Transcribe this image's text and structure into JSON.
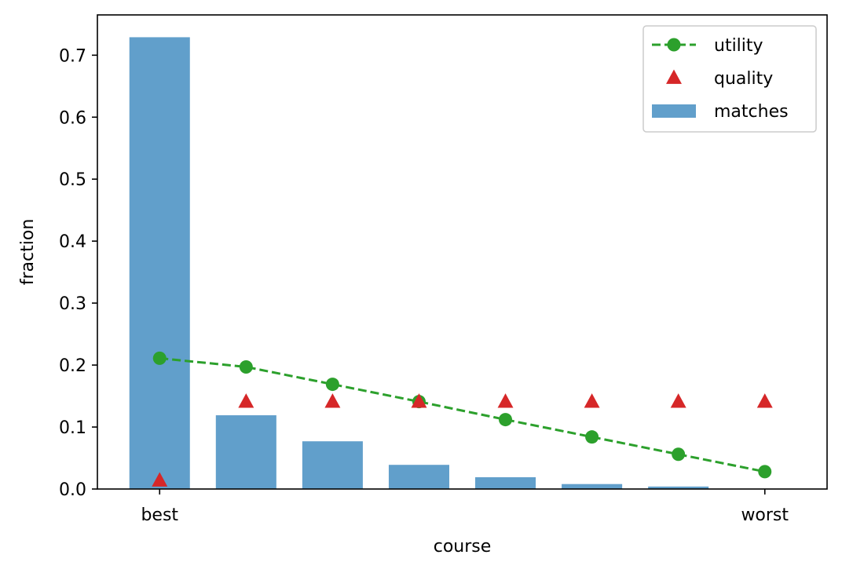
{
  "chart_data": {
    "type": "bar",
    "title": "",
    "xlabel": "course",
    "ylabel": "fraction",
    "x": [
      0,
      1,
      2,
      3,
      4,
      5,
      6,
      7
    ],
    "xticks": [
      {
        "x": 0,
        "label": "best"
      },
      {
        "x": 7,
        "label": "worst"
      }
    ],
    "xlim": [
      -0.72,
      7.72
    ],
    "ylim": [
      0,
      0.765
    ],
    "yticks": [
      0.0,
      0.1,
      0.2,
      0.3,
      0.4,
      0.5,
      0.6,
      0.7
    ],
    "ytick_labels": [
      "0.0",
      "0.1",
      "0.2",
      "0.3",
      "0.4",
      "0.5",
      "0.6",
      "0.7"
    ],
    "grid": false,
    "legend_position": "top-right",
    "series": [
      {
        "name": "utility",
        "kind": "line",
        "style": "dashed with circle markers",
        "color": "#2ca02c",
        "values": [
          0.211,
          0.197,
          0.169,
          0.141,
          0.112,
          0.084,
          0.056,
          0.028
        ]
      },
      {
        "name": "quality",
        "kind": "scatter",
        "style": "triangle markers",
        "color": "#d62728",
        "values": [
          0.014,
          0.141,
          0.141,
          0.141,
          0.141,
          0.141,
          0.141,
          0.141
        ]
      },
      {
        "name": "matches",
        "kind": "bar",
        "color": "#619fcb",
        "values": [
          0.729,
          0.119,
          0.077,
          0.039,
          0.019,
          0.008,
          0.004,
          0.0
        ]
      }
    ]
  }
}
